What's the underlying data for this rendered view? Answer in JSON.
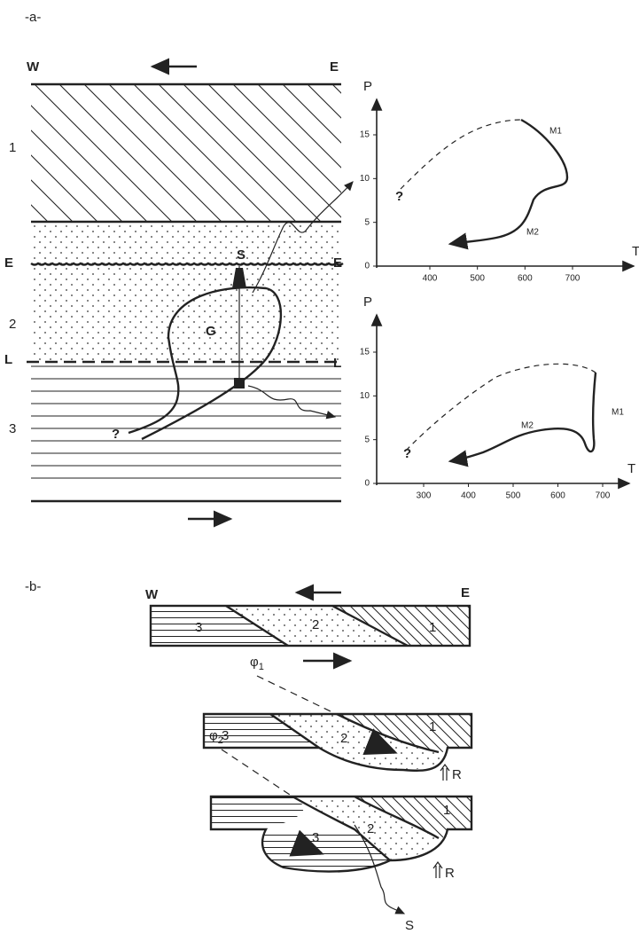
{
  "panel_a": {
    "label": "-a-",
    "west": "W",
    "east": "E",
    "unit_1": "1",
    "unit_2": "2",
    "unit_3": "3",
    "contact_e_left": "E",
    "contact_e_right": "E",
    "contact_l_left": "L",
    "contact_l_right": "L",
    "sample": "S",
    "granite": "G",
    "question": "?"
  },
  "pt_plot_1": {
    "y_label": "P",
    "x_label": "T",
    "xticks": [
      400,
      500,
      600,
      700
    ],
    "yticks": [
      0,
      5,
      10,
      15
    ],
    "path_m1": "M1",
    "path_m2": "M2",
    "question": "?"
  },
  "pt_plot_2": {
    "y_label": "P",
    "x_label": "T",
    "xticks": [
      300,
      400,
      500,
      600,
      700
    ],
    "yticks": [
      0,
      5,
      10,
      15
    ],
    "path_m1": "M1",
    "path_m2": "M2",
    "question": "?"
  },
  "panel_b": {
    "label": "-b-",
    "west": "W",
    "east": "E",
    "stage_1": {
      "unit_3": "3",
      "unit_2": "2",
      "unit_1": "1"
    },
    "stage_2": {
      "phi_symbol": "φ",
      "phi_index": "1",
      "unit_3": "3",
      "unit_2": "2",
      "unit_1": "1",
      "ridge": "R"
    },
    "stage_3": {
      "phi_symbol": "φ",
      "phi_index": "2",
      "unit_3": "3",
      "unit_2": "2",
      "unit_1": "1",
      "ridge": "R",
      "sample": "S"
    }
  }
}
